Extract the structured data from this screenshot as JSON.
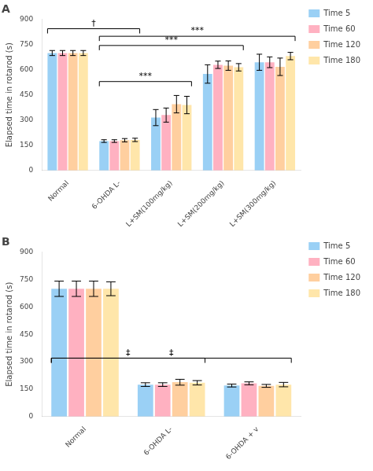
{
  "chart_data": [
    {
      "type": "bar",
      "title": "A",
      "categories": [
        "Normal",
        "6-OHDA L-",
        "L+SM(100mg/kg)",
        "L+SM(200mg/kg)",
        "L+SM(300mg/kg)"
      ],
      "series": [
        {
          "name": "Time 5",
          "values": [
            700,
            175,
            315,
            575,
            645
          ],
          "errors": [
            15,
            8,
            48,
            55,
            48
          ]
        },
        {
          "name": "Time 60",
          "values": [
            700,
            175,
            330,
            630,
            645
          ],
          "errors": [
            15,
            8,
            42,
            22,
            32
          ]
        },
        {
          "name": "Time 120",
          "values": [
            700,
            180,
            395,
            625,
            618
          ],
          "errors": [
            15,
            10,
            52,
            28,
            52
          ]
        },
        {
          "name": "Time 180",
          "values": [
            700,
            182,
            390,
            615,
            682
          ],
          "errors": [
            15,
            10,
            52,
            22,
            22
          ]
        }
      ],
      "annotations": [
        {
          "text": "†",
          "x1": "Normal",
          "x2": "6-OHDA L-",
          "y": 845
        },
        {
          "text": "***",
          "x1": "6-OHDA L-",
          "x2": "L+SM(100mg/kg)",
          "y": 530
        },
        {
          "text": "***",
          "x1": "6-OHDA L-",
          "x2": "L+SM(200mg/kg)",
          "y": 745
        },
        {
          "text": "***",
          "x1": "6-OHDA L-",
          "x2": "L+SM(300mg/kg)",
          "y": 800
        }
      ],
      "ylabel": "Elapsed time in rotarod (s)",
      "ylim": [
        0,
        900
      ],
      "yticks": [
        0,
        150,
        300,
        450,
        600,
        750,
        900
      ],
      "grid": false,
      "legend": "right"
    },
    {
      "type": "bar",
      "title": "B",
      "categories": [
        "Normal",
        "6-OHDA L-",
        "6-OHDA + v"
      ],
      "series": [
        {
          "name": "Time 5",
          "values": [
            700,
            175,
            170
          ],
          "errors": [
            42,
            10,
            8
          ]
        },
        {
          "name": "Time 60",
          "values": [
            700,
            175,
            182
          ],
          "errors": [
            42,
            10,
            8
          ]
        },
        {
          "name": "Time 120",
          "values": [
            700,
            188,
            168
          ],
          "errors": [
            42,
            16,
            8
          ]
        },
        {
          "name": "Time 180",
          "values": [
            700,
            185,
            175
          ],
          "errors": [
            38,
            12,
            12
          ]
        }
      ],
      "annotations": [
        {
          "text": "‡",
          "x1": "Normal",
          "x2": "6-OHDA L-",
          "y": 320
        },
        {
          "text": "‡",
          "x1": "Normal",
          "x2": "6-OHDA + v",
          "y": 320
        }
      ],
      "ylabel": "Elapsed time in rotarod (s)",
      "ylim": [
        0,
        900
      ],
      "yticks": [
        0,
        150,
        300,
        450,
        600,
        750,
        900
      ],
      "grid": false,
      "legend": "right"
    }
  ]
}
